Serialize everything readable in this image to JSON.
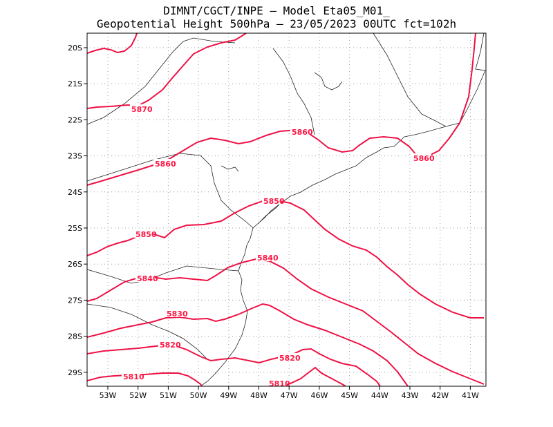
{
  "header": {
    "line1": "DIMNT/CGCT/INPE –   Model Eta05_M01_",
    "line2": "Geopotential Height 500hPa –  23/05/2023 00UTC fct=102h"
  },
  "axes": {
    "x_ticks": [
      "53W",
      "52W",
      "51W",
      "50W",
      "49W",
      "48W",
      "47W",
      "46W",
      "45W",
      "44W",
      "43W",
      "42W",
      "41W"
    ],
    "y_ticks": [
      "20S",
      "21S",
      "22S",
      "23S",
      "24S",
      "25S",
      "26S",
      "27S",
      "28S",
      "29S"
    ]
  },
  "contours": {
    "color": "#ee1144",
    "labels": [
      {
        "text": "5870",
        "name": "contour-label-5870"
      },
      {
        "text": "5860",
        "name": "contour-label-5860-west"
      },
      {
        "text": "5860",
        "name": "contour-label-5860-center"
      },
      {
        "text": "5860",
        "name": "contour-label-5860-east"
      },
      {
        "text": "5850",
        "name": "contour-label-5850-west"
      },
      {
        "text": "5850",
        "name": "contour-label-5850-center"
      },
      {
        "text": "5840",
        "name": "contour-label-5840-west"
      },
      {
        "text": "5840",
        "name": "contour-label-5840-center"
      },
      {
        "text": "5830",
        "name": "contour-label-5830"
      },
      {
        "text": "5820",
        "name": "contour-label-5820-west"
      },
      {
        "text": "5820",
        "name": "contour-label-5820-center"
      },
      {
        "text": "5810",
        "name": "contour-label-5810-west"
      },
      {
        "text": "5810",
        "name": "contour-label-5810-center"
      }
    ]
  }
}
